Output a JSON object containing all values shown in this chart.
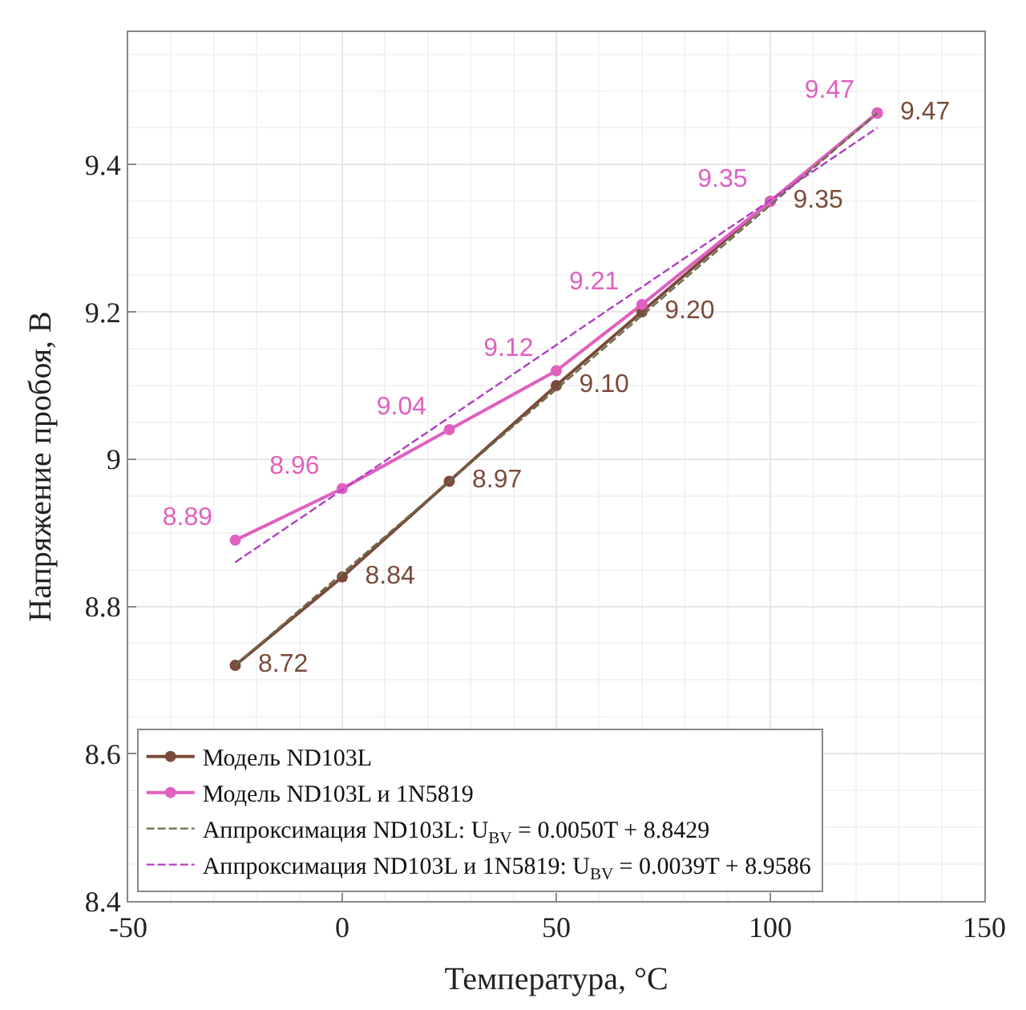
{
  "chart_data": {
    "type": "line",
    "xlabel": "Температура, °C",
    "ylabel": "Напряжение пробоя, В",
    "xlim": [
      -50,
      150
    ],
    "xticks": [
      -50,
      0,
      50,
      100,
      150
    ],
    "ylim": [
      8.4,
      9.58
    ],
    "yticks": [
      8.4,
      8.6,
      8.8,
      9,
      9.2,
      9.4
    ],
    "grid": true,
    "legend": "bottom left",
    "series": [
      {
        "name": "Модель ND103L",
        "color": "#7b4a3a",
        "x": [
          -25,
          0,
          25,
          50,
          70,
          100,
          125
        ],
        "values": [
          8.72,
          8.84,
          8.97,
          9.1,
          9.2,
          9.35,
          9.47
        ],
        "value_labels": [
          "8.72",
          "8.84",
          "8.97",
          "9.10",
          "9.20",
          "9.35",
          "9.47"
        ],
        "marker": "circle",
        "line_style": "solid"
      },
      {
        "name": "Модель ND103L и 1N5819",
        "color": "#e060c0",
        "x": [
          -25,
          0,
          25,
          50,
          70,
          100,
          125
        ],
        "values": [
          8.89,
          8.96,
          9.04,
          9.12,
          9.21,
          9.35,
          9.47
        ],
        "value_labels": [
          "8.89",
          "8.96",
          "9.04",
          "9.12",
          "9.21",
          "9.35",
          "9.47"
        ],
        "marker": "circle",
        "line_style": "solid"
      },
      {
        "name": "Аппроксимация ND103L: U$_{BV}$ = 0.0050T + 8.8429",
        "color": "#6b6b4a",
        "x": [
          -25,
          125
        ],
        "values": [
          8.72,
          9.47
        ],
        "marker": "none",
        "line_style": "dashed"
      },
      {
        "name": "Аппроксимация ND103L и 1N5819: U$_{BV}$ = 0.0039T + 8.9586",
        "color": "#b040c0",
        "x": [
          -25,
          125
        ],
        "values": [
          8.86,
          9.45
        ],
        "marker": "none",
        "line_style": "dashed"
      }
    ]
  }
}
